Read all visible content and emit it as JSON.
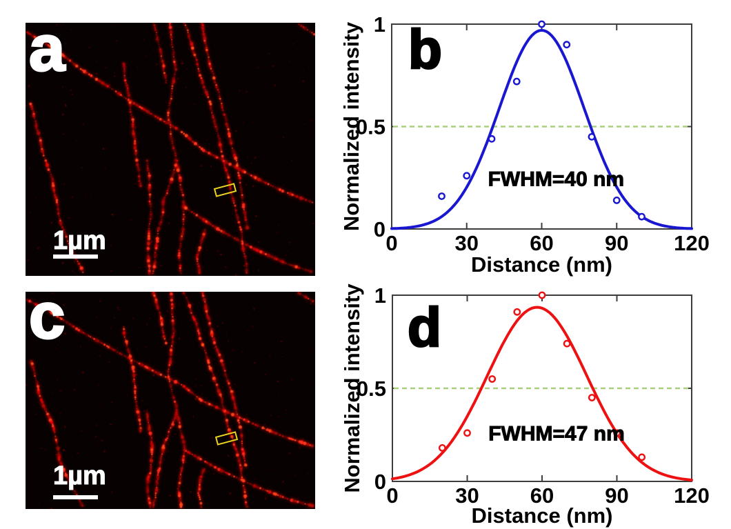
{
  "figure": {
    "background": "#ffffff",
    "description": "Four-panel figure: super-resolution fluorescence images of filaments (a, c) with line-profile Gaussian fits (b, d)"
  },
  "panels": {
    "a": {
      "letter": "a",
      "scale_bar_label": "1µm",
      "content": "fluorescence image of red-labeled filaments on black background with yellow ROI box",
      "roi_color": "#ecd51c",
      "filament_color": "#ff1a0d",
      "background": "#070101"
    },
    "c": {
      "letter": "c",
      "scale_bar_label": "1µm",
      "content": "fluorescence image of red-labeled filaments on black background with yellow ROI box",
      "roi_color": "#ecd51c",
      "filament_color": "#ff1a0d",
      "background": "#070101"
    }
  },
  "chart_data": [
    {
      "id": "b",
      "type": "scatter",
      "panel_letter": "b",
      "xlabel": "Distance (nm)",
      "ylabel": "Normalized intensity",
      "xlim": [
        0,
        120
      ],
      "ylim": [
        0,
        1
      ],
      "x_ticks": [
        0,
        30,
        60,
        90,
        120
      ],
      "y_ticks": [
        0,
        0.5,
        1
      ],
      "x": [
        20,
        30,
        40,
        50,
        60,
        70,
        80,
        90,
        100
      ],
      "y": [
        0.16,
        0.26,
        0.44,
        0.72,
        1.0,
        0.9,
        0.45,
        0.14,
        0.06
      ],
      "fit": {
        "shape": "gaussian",
        "center": 60,
        "peak": 0.97,
        "fwhm": 40
      },
      "half_max_line": 0.5,
      "annotation": {
        "text": "FWHM=40 nm",
        "x": 38.5,
        "y": 0.21
      },
      "color": "#1a17d0",
      "half_line_color": "#a9cf7c",
      "axis_color": "#3c3c3c",
      "grid": false
    },
    {
      "id": "d",
      "type": "scatter",
      "panel_letter": "d",
      "xlabel": "Distance (nm)",
      "ylabel": "Normalized intensity",
      "xlim": [
        0,
        120
      ],
      "ylim": [
        0,
        1
      ],
      "x_ticks": [
        0,
        30,
        60,
        90,
        120
      ],
      "y_ticks": [
        0,
        0.5,
        1
      ],
      "x": [
        20,
        30,
        40,
        50,
        60,
        70,
        80,
        90,
        100
      ],
      "y": [
        0.18,
        0.26,
        0.55,
        0.91,
        1.0,
        0.74,
        0.45,
        0.26,
        0.13
      ],
      "fit": {
        "shape": "gaussian",
        "center": 58,
        "peak": 0.935,
        "fwhm": 47
      },
      "half_max_line": 0.5,
      "annotation": {
        "text": "FWHM=47 nm",
        "x": 38.5,
        "y": 0.22
      },
      "color": "#ee1111",
      "half_line_color": "#a9cf7c",
      "axis_color": "#3c3c3c",
      "grid": false
    }
  ]
}
